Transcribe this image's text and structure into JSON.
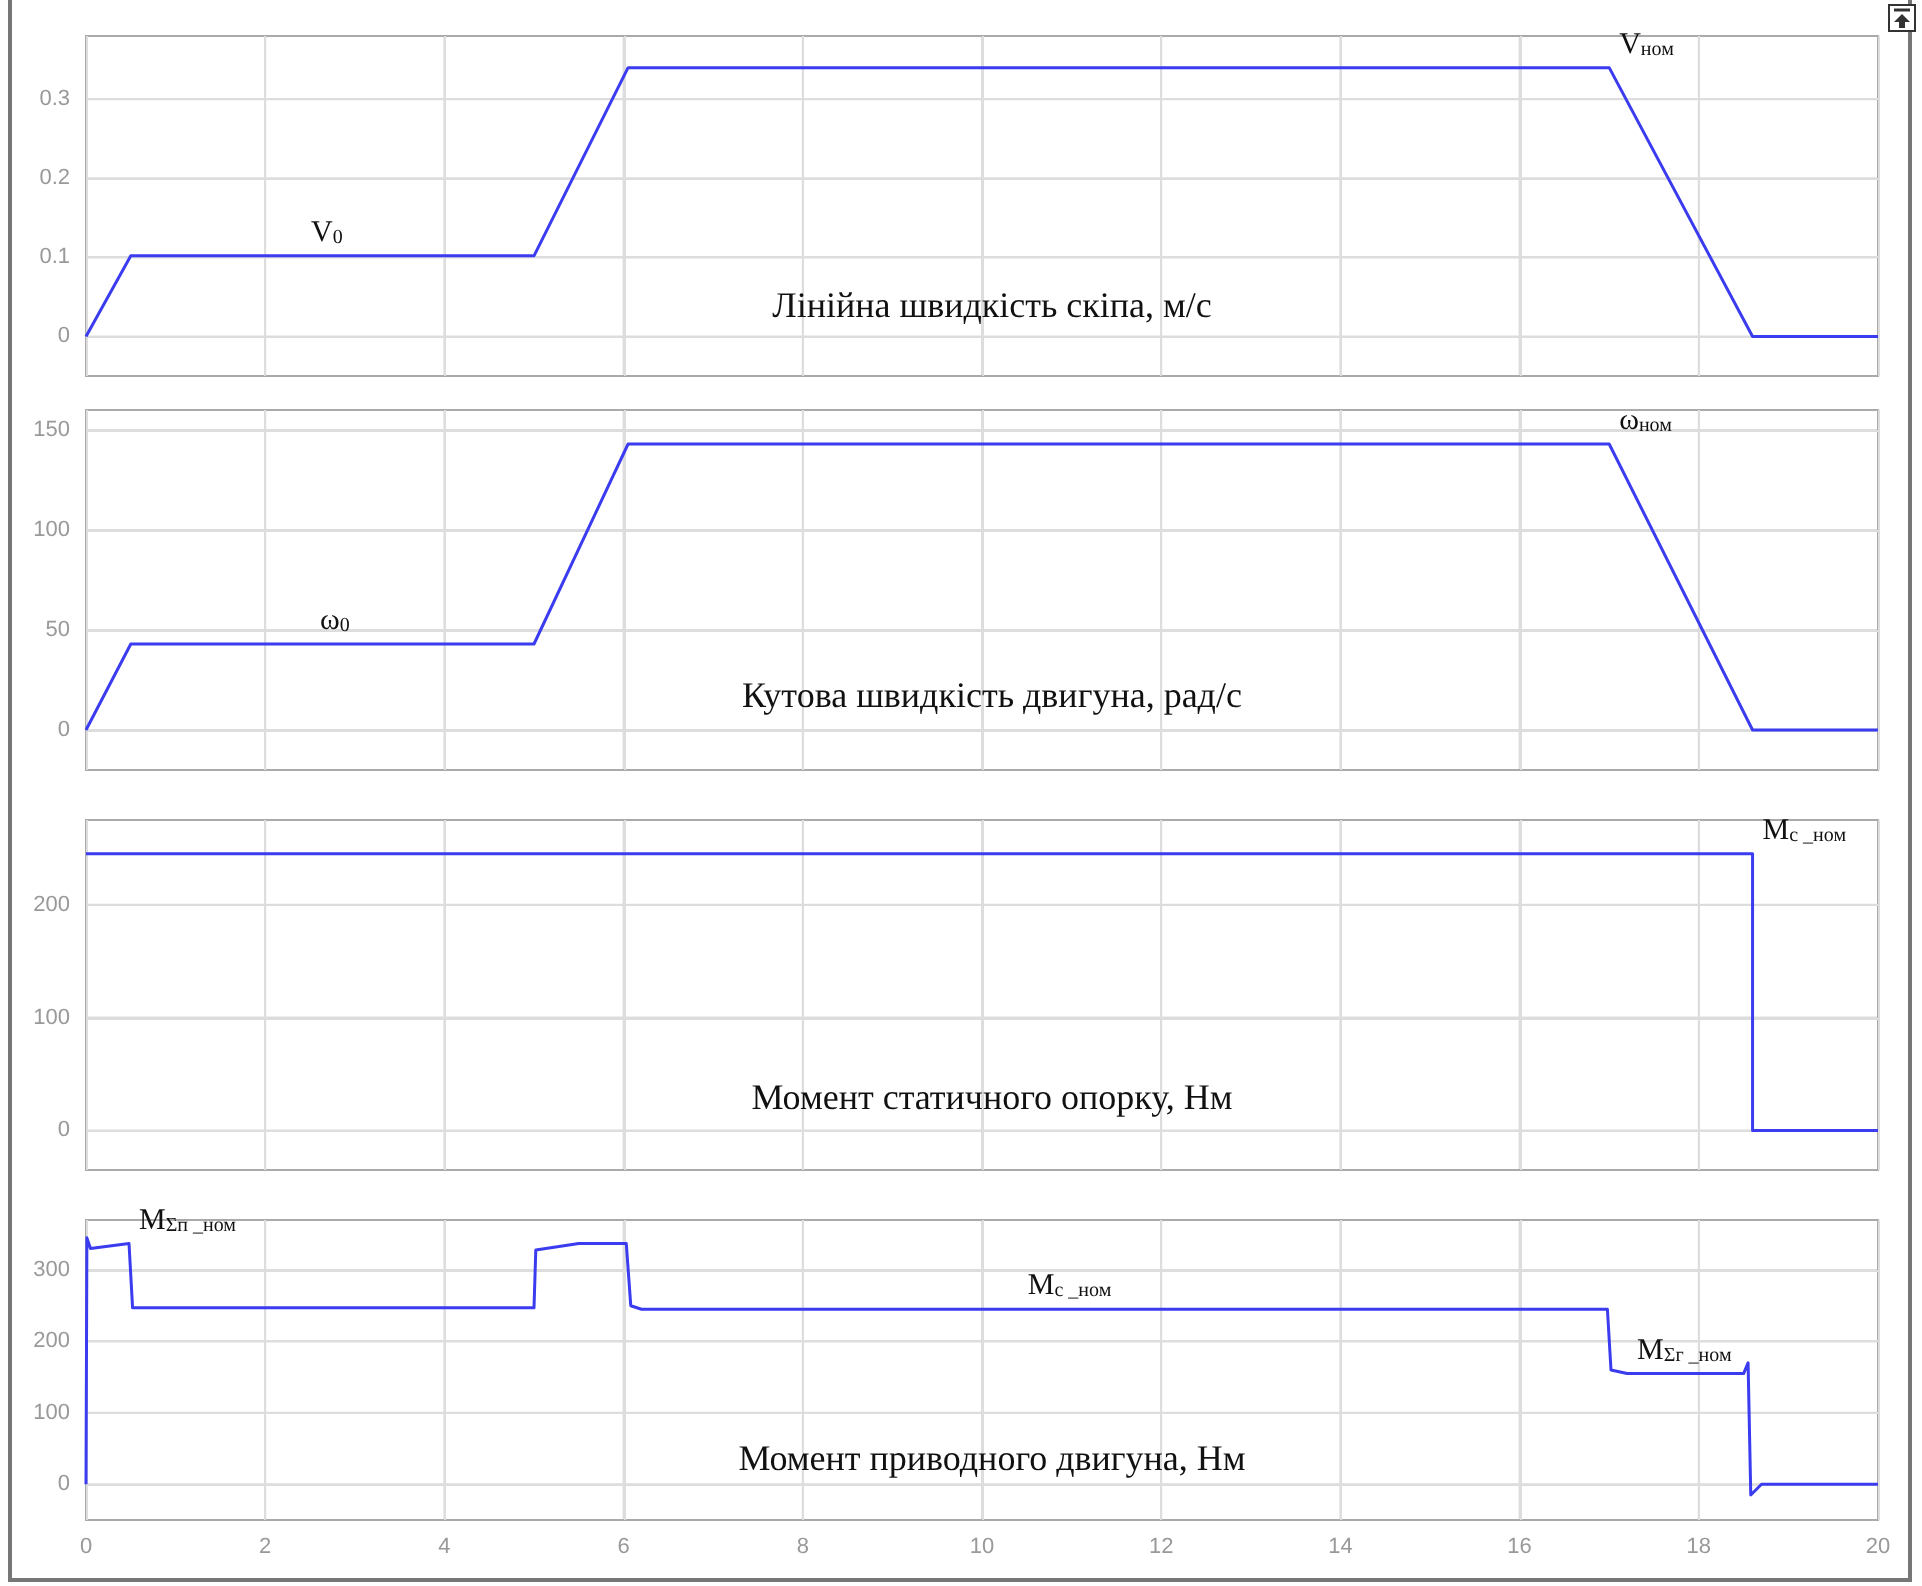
{
  "chart_data": [
    {
      "type": "line",
      "title": "Лінійна швидкість скіпа, м/с",
      "x": [
        0,
        0.5,
        5,
        6.05,
        17,
        18.6,
        20
      ],
      "series": [
        {
          "color": "#3b3bf0",
          "values": [
            0,
            0.102,
            0.102,
            0.34,
            0.34,
            0,
            0
          ]
        }
      ],
      "xlim": [
        0,
        20
      ],
      "xticks": [
        0,
        2,
        4,
        6,
        8,
        10,
        12,
        14,
        16,
        18,
        20
      ],
      "ylim": [
        -0.05,
        0.38
      ],
      "yticks": [
        0,
        0.1,
        0.2,
        0.3
      ],
      "grid": true,
      "tick_labels": "y",
      "annotations": [
        {
          "text": "V$_{0}$",
          "x": 2.4,
          "y": 0.102
        },
        {
          "text": "V$_{ном}$",
          "x": 17,
          "y": 0.34
        }
      ]
    },
    {
      "type": "line",
      "title": "Кутова швидкість двигуна, рад/с",
      "x": [
        0,
        0.5,
        5,
        6.05,
        17,
        18.6,
        20
      ],
      "series": [
        {
          "color": "#3b3bf0",
          "values": [
            0,
            43,
            43,
            143,
            143,
            0,
            0
          ]
        }
      ],
      "xlim": [
        0,
        20
      ],
      "xticks": [
        0,
        2,
        4,
        6,
        8,
        10,
        12,
        14,
        16,
        18,
        20
      ],
      "ylim": [
        -20,
        160
      ],
      "yticks": [
        0,
        50,
        100,
        150
      ],
      "grid": true,
      "tick_labels": "y",
      "annotations": [
        {
          "text": "ω$_{0}$",
          "x": 2.5,
          "y": 43
        },
        {
          "text": "ω$_{ном}$",
          "x": 17,
          "y": 143
        }
      ]
    },
    {
      "type": "line",
      "title": "Момент статичного опорку, Нм",
      "x": [
        0,
        18.6,
        18.6,
        20
      ],
      "series": [
        {
          "color": "#3b3bf0",
          "values": [
            245,
            245,
            0,
            0
          ]
        }
      ],
      "xlim": [
        0,
        20
      ],
      "xticks": [
        0,
        2,
        4,
        6,
        8,
        10,
        12,
        14,
        16,
        18,
        20
      ],
      "ylim": [
        -35,
        275
      ],
      "yticks": [
        0,
        100,
        200
      ],
      "grid": true,
      "tick_labels": "y",
      "annotations": [
        {
          "text": "M$_{c _ном}$",
          "x": 18.6,
          "y": 245
        }
      ]
    },
    {
      "type": "line",
      "title": "Момент приводного двигуна, Нм",
      "x": [
        0,
        0.01,
        0.05,
        0.48,
        0.52,
        5,
        5.02,
        5.5,
        6.03,
        6.08,
        6.2,
        16.98,
        17.02,
        17.2,
        18.5,
        18.55,
        18.58,
        18.7,
        20
      ],
      "series": [
        {
          "color": "#3b3bf0",
          "values": [
            0,
            345,
            330,
            337,
            247,
            247,
            328,
            337,
            337,
            250,
            245,
            245,
            160,
            155,
            155,
            170,
            -15,
            0,
            0
          ]
        }
      ],
      "xlim": [
        0,
        20
      ],
      "xticks": [
        0,
        2,
        4,
        6,
        8,
        10,
        12,
        14,
        16,
        18,
        20
      ],
      "ylim": [
        -50,
        370
      ],
      "yticks": [
        0,
        100,
        200,
        300
      ],
      "grid": true,
      "annotations": [
        {
          "text": "M$_{Σп _ном}$",
          "x": 0.48,
          "y": 337
        },
        {
          "text": "M$_{c _ном}$",
          "x": 10.4,
          "y": 245
        },
        {
          "text": "M$_{Σг _ном}$",
          "x": 17.2,
          "y": 155
        }
      ]
    }
  ]
}
